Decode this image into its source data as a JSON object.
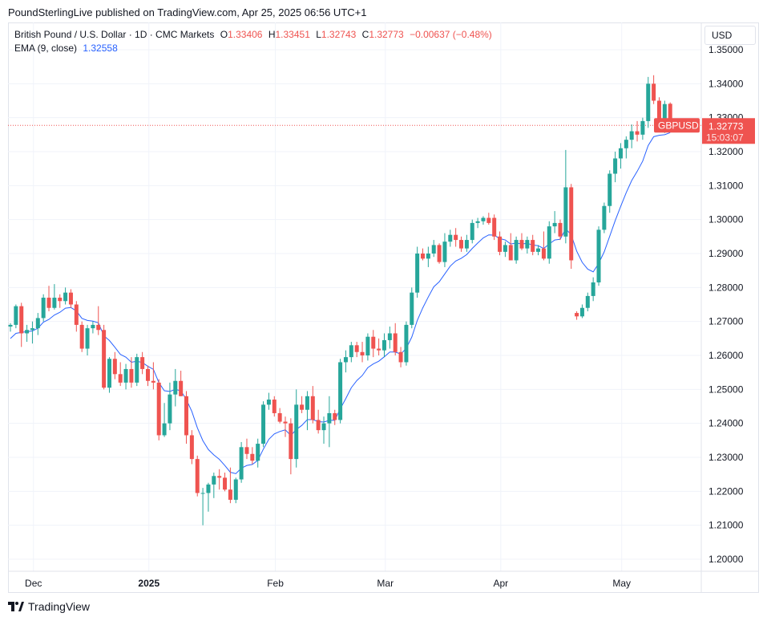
{
  "publisher_line": "PoundSterlingLive published on TradingView.com, Apr 25, 2025 06:56 UTC+1",
  "legend": {
    "symbol": "British Pound / U.S. Dollar · 1D · CMC Markets",
    "open_label": "O",
    "open": "1.33406",
    "high_label": "H",
    "high": "1.33451",
    "low_label": "L",
    "low": "1.32743",
    "close_label": "C",
    "close": "1.32773",
    "change": "−0.00637 (−0.48%)",
    "ema_label": "EMA (9, close)",
    "ema_value": "1.32558"
  },
  "currency_button": "USD",
  "price_tag": {
    "symbol": "GBPUSD",
    "price": "1.32773",
    "countdown": "15:03:07"
  },
  "brand": "TradingView",
  "colors": {
    "up": "#26a69a",
    "down": "#ef5350",
    "ema": "#2962ff",
    "grid": "#f0f3fa",
    "price_line": "#ef5350"
  },
  "chart_data": {
    "type": "candlestick",
    "y_ticks": [
      "1.35000",
      "1.34000",
      "1.33000",
      "1.32000",
      "1.31000",
      "1.30000",
      "1.29000",
      "1.28000",
      "1.27000",
      "1.26000",
      "1.25000",
      "1.24000",
      "1.23000",
      "1.22000",
      "1.21000",
      "1.20000"
    ],
    "ylim": [
      1.2,
      1.35
    ],
    "x_ticks": [
      {
        "label": "Dec",
        "index": 2,
        "bold": false
      },
      {
        "label": "2025",
        "index": 23,
        "bold": true
      },
      {
        "label": "Feb",
        "index": 46,
        "bold": false
      },
      {
        "label": "Mar",
        "index": 66,
        "bold": false
      },
      {
        "label": "Apr",
        "index": 87,
        "bold": false
      },
      {
        "label": "May",
        "index": 109,
        "bold": false
      }
    ],
    "candles": [
      [
        1.2685,
        1.2695,
        1.267,
        1.269
      ],
      [
        1.269,
        1.275,
        1.268,
        1.2745
      ],
      [
        1.2745,
        1.2755,
        1.2625,
        1.2665
      ],
      [
        1.2665,
        1.269,
        1.264,
        1.2675
      ],
      [
        1.2675,
        1.27,
        1.2635,
        1.268
      ],
      [
        1.268,
        1.2725,
        1.266,
        1.271
      ],
      [
        1.271,
        1.278,
        1.27,
        1.277
      ],
      [
        1.277,
        1.2805,
        1.273,
        1.274
      ],
      [
        1.274,
        1.281,
        1.2735,
        1.277
      ],
      [
        1.277,
        1.278,
        1.274,
        1.276
      ],
      [
        1.276,
        1.28,
        1.275,
        1.2785
      ],
      [
        1.2785,
        1.2795,
        1.274,
        1.275
      ],
      [
        1.275,
        1.276,
        1.267,
        1.269
      ],
      [
        1.269,
        1.27,
        1.261,
        1.262
      ],
      [
        1.262,
        1.269,
        1.26,
        1.268
      ],
      [
        1.268,
        1.27,
        1.2665,
        1.269
      ],
      [
        1.269,
        1.2745,
        1.266,
        1.2675
      ],
      [
        1.2675,
        1.269,
        1.25,
        1.2505
      ],
      [
        1.2505,
        1.2595,
        1.249,
        1.259
      ],
      [
        1.259,
        1.261,
        1.253,
        1.2545
      ],
      [
        1.2545,
        1.258,
        1.251,
        1.252
      ],
      [
        1.252,
        1.2575,
        1.25,
        1.256
      ],
      [
        1.256,
        1.2595,
        1.2505,
        1.252
      ],
      [
        1.252,
        1.2605,
        1.251,
        1.2595
      ],
      [
        1.2595,
        1.261,
        1.2545,
        1.256
      ],
      [
        1.256,
        1.257,
        1.251,
        1.2525
      ],
      [
        1.2525,
        1.258,
        1.25,
        1.252
      ],
      [
        1.252,
        1.253,
        1.235,
        1.2365
      ],
      [
        1.2365,
        1.246,
        1.236,
        1.24
      ],
      [
        1.24,
        1.252,
        1.238,
        1.2485
      ],
      [
        1.2485,
        1.256,
        1.245,
        1.2525
      ],
      [
        1.2525,
        1.2555,
        1.248,
        1.248
      ],
      [
        1.248,
        1.2495,
        1.234,
        1.2365
      ],
      [
        1.2365,
        1.238,
        1.228,
        1.2295
      ],
      [
        1.2295,
        1.2305,
        1.2185,
        1.2195
      ],
      [
        1.2195,
        1.221,
        1.21,
        1.2195
      ],
      [
        1.2195,
        1.2225,
        1.214,
        1.222
      ],
      [
        1.222,
        1.2255,
        1.218,
        1.2245
      ],
      [
        1.2245,
        1.2265,
        1.2205,
        1.224
      ],
      [
        1.224,
        1.2255,
        1.22,
        1.2205
      ],
      [
        1.2205,
        1.227,
        1.2165,
        1.2175
      ],
      [
        1.2175,
        1.224,
        1.2165,
        1.2235
      ],
      [
        1.2235,
        1.2345,
        1.2225,
        1.233
      ],
      [
        1.233,
        1.2355,
        1.2295,
        1.231
      ],
      [
        1.231,
        1.233,
        1.228,
        1.229
      ],
      [
        1.229,
        1.2355,
        1.227,
        1.234
      ],
      [
        1.234,
        1.2465,
        1.233,
        1.2455
      ],
      [
        1.2455,
        1.249,
        1.244,
        1.247
      ],
      [
        1.247,
        1.248,
        1.242,
        1.243
      ],
      [
        1.243,
        1.2445,
        1.24,
        1.2405
      ],
      [
        1.2405,
        1.242,
        1.236,
        1.24
      ],
      [
        1.24,
        1.2415,
        1.225,
        1.2295
      ],
      [
        1.2295,
        1.25,
        1.227,
        1.2455
      ],
      [
        1.2455,
        1.248,
        1.243,
        1.244
      ],
      [
        1.244,
        1.2495,
        1.238,
        1.248
      ],
      [
        1.248,
        1.251,
        1.24,
        1.241
      ],
      [
        1.241,
        1.244,
        1.237,
        1.238
      ],
      [
        1.238,
        1.242,
        1.234,
        1.24
      ],
      [
        1.24,
        1.248,
        1.233,
        1.243
      ],
      [
        1.243,
        1.244,
        1.2395,
        1.241
      ],
      [
        1.241,
        1.259,
        1.24,
        1.258
      ],
      [
        1.258,
        1.2615,
        1.255,
        1.2595
      ],
      [
        1.2595,
        1.264,
        1.258,
        1.263
      ],
      [
        1.263,
        1.264,
        1.2595,
        1.261
      ],
      [
        1.261,
        1.264,
        1.258,
        1.26
      ],
      [
        1.26,
        1.2665,
        1.2585,
        1.2655
      ],
      [
        1.2655,
        1.2675,
        1.2595,
        1.262
      ],
      [
        1.262,
        1.265,
        1.26,
        1.2615
      ],
      [
        1.2615,
        1.2665,
        1.2595,
        1.2645
      ],
      [
        1.2645,
        1.2685,
        1.262,
        1.2665
      ],
      [
        1.2665,
        1.2695,
        1.26,
        1.261
      ],
      [
        1.261,
        1.2625,
        1.2565,
        1.258
      ],
      [
        1.258,
        1.27,
        1.257,
        1.269
      ],
      [
        1.269,
        1.28,
        1.268,
        1.2785
      ],
      [
        1.2785,
        1.292,
        1.277,
        1.29
      ],
      [
        1.29,
        1.2915,
        1.288,
        1.2885
      ],
      [
        1.2885,
        1.292,
        1.286,
        1.29
      ],
      [
        1.29,
        1.294,
        1.289,
        1.2925
      ],
      [
        1.2925,
        1.293,
        1.287,
        1.2875
      ],
      [
        1.2875,
        1.296,
        1.286,
        1.2935
      ],
      [
        1.2935,
        1.297,
        1.292,
        1.2955
      ],
      [
        1.2955,
        1.2975,
        1.292,
        1.294
      ],
      [
        1.294,
        1.295,
        1.2905,
        1.2915
      ],
      [
        1.2915,
        1.2955,
        1.2905,
        1.294
      ],
      [
        1.294,
        1.3,
        1.293,
        1.299
      ],
      [
        1.299,
        1.3005,
        1.2975,
        1.2995
      ],
      [
        1.2995,
        1.301,
        1.2985,
        1.3005
      ],
      [
        1.3005,
        1.302,
        1.2985,
        1.299
      ],
      [
        1.3005,
        1.3015,
        1.294,
        1.295
      ],
      [
        1.295,
        1.2965,
        1.2895,
        1.2905
      ],
      [
        1.2905,
        1.2935,
        1.289,
        1.2925
      ],
      [
        1.2925,
        1.296,
        1.288,
        1.288
      ],
      [
        1.288,
        1.295,
        1.287,
        1.294
      ],
      [
        1.294,
        1.296,
        1.291,
        1.2915
      ],
      [
        1.2915,
        1.295,
        1.29,
        1.294
      ],
      [
        1.294,
        1.2955,
        1.2895,
        1.2905
      ],
      [
        1.2905,
        1.2925,
        1.2895,
        1.2915
      ],
      [
        1.2915,
        1.2965,
        1.288,
        1.2885
      ],
      [
        1.2885,
        1.2995,
        1.287,
        1.298
      ],
      [
        1.298,
        1.3025,
        1.296,
        1.299
      ],
      [
        1.299,
        1.3,
        1.294,
        1.295
      ],
      [
        1.295,
        1.3205,
        1.293,
        1.3095
      ],
      [
        1.3095,
        1.3105,
        1.2855,
        1.288
      ],
      [
        1.2725,
        1.273,
        1.2705,
        1.2715
      ],
      [
        1.2715,
        1.275,
        1.271,
        1.274
      ],
      [
        1.274,
        1.2785,
        1.273,
        1.2775
      ],
      [
        1.2775,
        1.283,
        1.276,
        1.2815
      ],
      [
        1.2815,
        1.298,
        1.2805,
        1.297
      ],
      [
        1.297,
        1.305,
        1.296,
        1.304
      ],
      [
        1.304,
        1.3145,
        1.302,
        1.3135
      ],
      [
        1.3135,
        1.32,
        1.311,
        1.318
      ],
      [
        1.318,
        1.3225,
        1.315,
        1.321
      ],
      [
        1.321,
        1.3245,
        1.318,
        1.3235
      ],
      [
        1.3235,
        1.328,
        1.321,
        1.326
      ],
      [
        1.326,
        1.329,
        1.323,
        1.325
      ],
      [
        1.325,
        1.33,
        1.3235,
        1.329
      ],
      [
        1.329,
        1.342,
        1.327,
        1.34
      ],
      [
        1.34,
        1.3425,
        1.334,
        1.335
      ],
      [
        1.335,
        1.336,
        1.326,
        1.3265
      ],
      [
        1.3265,
        1.335,
        1.3255,
        1.334
      ],
      [
        1.3341,
        1.3345,
        1.3274,
        1.3277
      ]
    ],
    "ema": {
      "name": "EMA (9, close)",
      "values": [
        1.265,
        1.2665,
        1.2668,
        1.267,
        1.2672,
        1.268,
        1.2698,
        1.2706,
        1.2719,
        1.2727,
        1.2739,
        1.2741,
        1.2731,
        1.2709,
        1.2703,
        1.2701,
        1.2696,
        1.2658,
        1.2644,
        1.2624,
        1.2603,
        1.2595,
        1.258,
        1.2583,
        1.2579,
        1.2568,
        1.2559,
        1.252,
        1.2496,
        1.2494,
        1.25,
        1.2496,
        1.247,
        1.2435,
        1.2387,
        1.2349,
        1.2323,
        1.2307,
        1.2294,
        1.2276,
        1.2256,
        1.2252,
        1.2268,
        1.2276,
        1.2279,
        1.2291,
        1.2324,
        1.2353,
        1.2369,
        1.2376,
        1.2381,
        1.2364,
        1.2382,
        1.2394,
        1.2411,
        1.2411,
        1.2405,
        1.2404,
        1.2409,
        1.2409,
        1.2443,
        1.2473,
        1.2505,
        1.2526,
        1.2541,
        1.2564,
        1.2575,
        1.2583,
        1.2596,
        1.261,
        1.261,
        1.2604,
        1.2621,
        1.2654,
        1.2703,
        1.274,
        1.2772,
        1.2802,
        1.2817,
        1.284,
        1.2863,
        1.2878,
        1.2886,
        1.2897,
        1.2915,
        1.2931,
        1.2946,
        1.2955,
        1.2954,
        1.2944,
        1.294,
        1.2928,
        1.2931,
        1.2928,
        1.293,
        1.2925,
        1.2923,
        1.2915,
        1.2928,
        1.294,
        1.2942,
        1.2973,
        1.2955,
        1.2907,
        1.2874,
        1.2854,
        1.2846,
        1.2871,
        1.2905,
        1.2951,
        1.2997,
        1.3039,
        1.3079,
        1.3115,
        1.3142,
        1.3172,
        1.3218,
        1.3244,
        1.3248,
        1.325,
        1.3256
      ]
    },
    "current_price": 1.32773
  }
}
